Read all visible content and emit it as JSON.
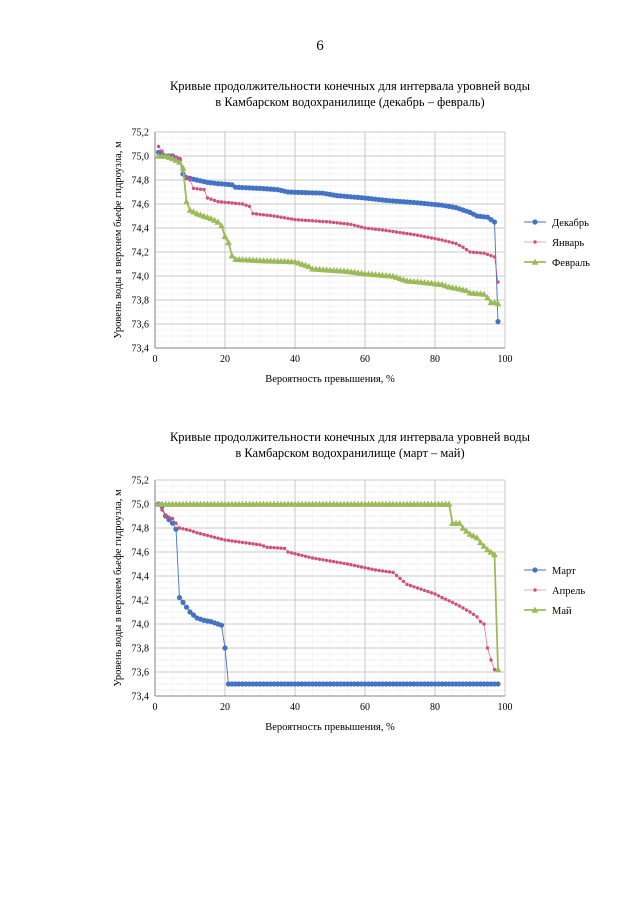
{
  "page_number": "6",
  "chart_data": [
    {
      "type": "line",
      "title_line1": "Кривые продолжительности конечных для интервала уровней воды",
      "title_line2": "в Камбарском водохранилище (декабрь – февраль)",
      "xlabel": "Вероятность превышения, %",
      "ylabel": "Уровень воды в верхнем бьефе гидроузла, м",
      "xlim": [
        0,
        100
      ],
      "ylim": [
        73.4,
        75.2
      ],
      "xticks": [
        "0",
        "20",
        "40",
        "60",
        "80",
        "100"
      ],
      "yticks": [
        "73,4",
        "73,6",
        "73,8",
        "74,0",
        "74,2",
        "74,4",
        "74,6",
        "74,8",
        "75,0",
        "75,2"
      ],
      "grid": true,
      "legend_position": "right",
      "series": [
        {
          "name": "Декабрь",
          "color": "#4472C4",
          "marker": "circle",
          "points": [
            [
              1,
              75.03
            ],
            [
              3,
              75.0
            ],
            [
              5,
              75.0
            ],
            [
              7,
              74.97
            ],
            [
              8,
              74.85
            ],
            [
              9,
              74.82
            ],
            [
              12,
              74.8
            ],
            [
              15,
              74.78
            ],
            [
              18,
              74.77
            ],
            [
              22,
              74.76
            ],
            [
              23,
              74.74
            ],
            [
              30,
              74.73
            ],
            [
              35,
              74.72
            ],
            [
              38,
              74.7
            ],
            [
              48,
              74.69
            ],
            [
              52,
              74.67
            ],
            [
              60,
              74.65
            ],
            [
              66,
              74.63
            ],
            [
              75,
              74.61
            ],
            [
              82,
              74.59
            ],
            [
              86,
              74.57
            ],
            [
              90,
              74.53
            ],
            [
              92,
              74.5
            ],
            [
              95,
              74.49
            ],
            [
              97,
              74.45
            ],
            [
              98,
              73.62
            ]
          ]
        },
        {
          "name": "Январь",
          "color": "#D05078",
          "marker": "dot",
          "points": [
            [
              1,
              75.08
            ],
            [
              3,
              75.0
            ],
            [
              5,
              75.0
            ],
            [
              7,
              74.98
            ],
            [
              8,
              74.9
            ],
            [
              9,
              74.82
            ],
            [
              10,
              74.8
            ],
            [
              11,
              74.73
            ],
            [
              14,
              74.72
            ],
            [
              15,
              74.65
            ],
            [
              18,
              74.62
            ],
            [
              25,
              74.6
            ],
            [
              27,
              74.58
            ],
            [
              28,
              74.52
            ],
            [
              34,
              74.5
            ],
            [
              40,
              74.47
            ],
            [
              50,
              74.45
            ],
            [
              56,
              74.43
            ],
            [
              60,
              74.4
            ],
            [
              66,
              74.38
            ],
            [
              75,
              74.34
            ],
            [
              82,
              74.3
            ],
            [
              86,
              74.27
            ],
            [
              88,
              74.24
            ],
            [
              90,
              74.2
            ],
            [
              94,
              74.19
            ],
            [
              96,
              74.17
            ],
            [
              97,
              74.16
            ],
            [
              98,
              73.95
            ]
          ]
        },
        {
          "name": "Февраль",
          "color": "#9BBB59",
          "marker": "triangle",
          "points": [
            [
              1,
              75.0
            ],
            [
              3,
              75.0
            ],
            [
              5,
              74.98
            ],
            [
              7,
              74.95
            ],
            [
              8,
              74.9
            ],
            [
              9,
              74.62
            ],
            [
              10,
              74.55
            ],
            [
              12,
              74.52
            ],
            [
              14,
              74.5
            ],
            [
              16,
              74.48
            ],
            [
              18,
              74.45
            ],
            [
              19,
              74.42
            ],
            [
              20,
              74.33
            ],
            [
              21,
              74.28
            ],
            [
              22,
              74.17
            ],
            [
              23,
              74.14
            ],
            [
              30,
              74.13
            ],
            [
              40,
              74.12
            ],
            [
              44,
              74.08
            ],
            [
              45,
              74.06
            ],
            [
              55,
              74.04
            ],
            [
              60,
              74.02
            ],
            [
              68,
              74.0
            ],
            [
              70,
              73.98
            ],
            [
              72,
              73.96
            ],
            [
              76,
              73.95
            ],
            [
              82,
              73.93
            ],
            [
              84,
              73.91
            ],
            [
              86,
              73.9
            ],
            [
              89,
              73.88
            ],
            [
              90,
              73.86
            ],
            [
              94,
              73.85
            ],
            [
              95,
              73.82
            ],
            [
              96,
              73.78
            ],
            [
              97,
              73.78
            ],
            [
              98,
              73.77
            ]
          ]
        }
      ]
    },
    {
      "type": "line",
      "title_line1": "Кривые продолжительности конечных для интервала уровней воды",
      "title_line2": "в Камбарском водохранилище (март – май)",
      "xlabel": "Вероятность превышения, %",
      "ylabel": "Уровень воды в верхнем бьефе гидроузла, м",
      "xlim": [
        0,
        100
      ],
      "ylim": [
        73.4,
        75.2
      ],
      "xticks": [
        "0",
        "20",
        "40",
        "60",
        "80",
        "100"
      ],
      "yticks": [
        "73,4",
        "73,6",
        "73,8",
        "74,0",
        "74,2",
        "74,4",
        "74,6",
        "74,8",
        "75,0",
        "75,2"
      ],
      "grid": true,
      "legend_position": "right",
      "series": [
        {
          "name": "Март",
          "color": "#4472C4",
          "marker": "circle",
          "points": [
            [
              1,
              75.0
            ],
            [
              2,
              74.98
            ],
            [
              3,
              74.9
            ],
            [
              4,
              74.87
            ],
            [
              5,
              74.84
            ],
            [
              6,
              74.79
            ],
            [
              7,
              74.22
            ],
            [
              8,
              74.18
            ],
            [
              10,
              74.1
            ],
            [
              12,
              74.05
            ],
            [
              14,
              74.03
            ],
            [
              16,
              74.02
            ],
            [
              18,
              74.0
            ],
            [
              19,
              73.99
            ],
            [
              20,
              73.8
            ],
            [
              21,
              73.5
            ],
            [
              40,
              73.5
            ],
            [
              60,
              73.5
            ],
            [
              80,
              73.5
            ],
            [
              98,
              73.5
            ]
          ]
        },
        {
          "name": "Апрель",
          "color": "#D05078",
          "marker": "dot",
          "points": [
            [
              1,
              75.0
            ],
            [
              3,
              74.9
            ],
            [
              5,
              74.88
            ],
            [
              7,
              74.8
            ],
            [
              10,
              74.78
            ],
            [
              12,
              74.76
            ],
            [
              20,
              74.7
            ],
            [
              30,
              74.66
            ],
            [
              32,
              74.64
            ],
            [
              37,
              74.63
            ],
            [
              38,
              74.6
            ],
            [
              45,
              74.55
            ],
            [
              55,
              74.5
            ],
            [
              63,
              74.45
            ],
            [
              68,
              74.43
            ],
            [
              70,
              74.38
            ],
            [
              72,
              74.33
            ],
            [
              75,
              74.3
            ],
            [
              80,
              74.25
            ],
            [
              82,
              74.22
            ],
            [
              85,
              74.18
            ],
            [
              87,
              74.15
            ],
            [
              90,
              74.1
            ],
            [
              92,
              74.06
            ],
            [
              93,
              74.02
            ],
            [
              94,
              74.0
            ],
            [
              95,
              73.8
            ],
            [
              96,
              73.7
            ],
            [
              97,
              73.62
            ]
          ]
        },
        {
          "name": "Май",
          "color": "#9BBB59",
          "marker": "triangle",
          "points": [
            [
              1,
              75.0
            ],
            [
              20,
              75.0
            ],
            [
              40,
              75.0
            ],
            [
              60,
              75.0
            ],
            [
              80,
              75.0
            ],
            [
              84,
              75.0
            ],
            [
              85,
              74.84
            ],
            [
              87,
              74.84
            ],
            [
              88,
              74.8
            ],
            [
              90,
              74.75
            ],
            [
              92,
              74.72
            ],
            [
              93,
              74.68
            ],
            [
              95,
              74.62
            ],
            [
              97,
              74.58
            ],
            [
              98,
              73.62
            ]
          ]
        }
      ]
    }
  ]
}
